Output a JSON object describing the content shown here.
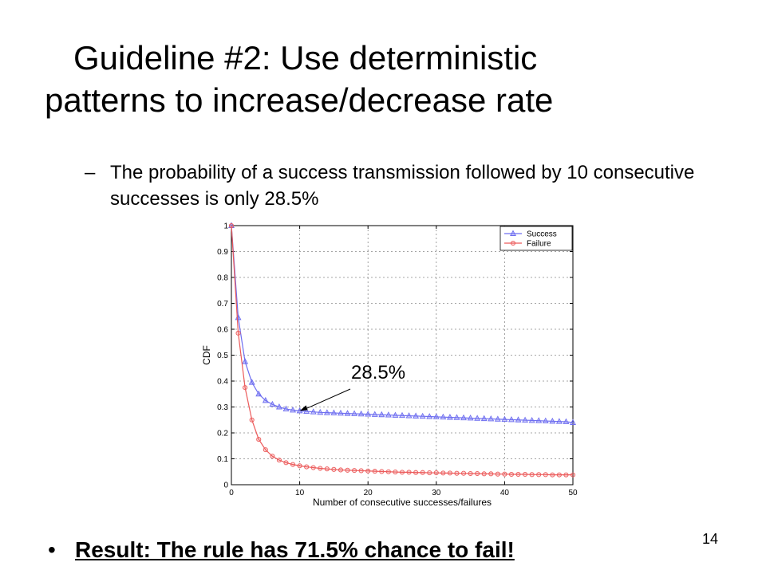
{
  "slide": {
    "title_line1": "Guideline #2: Use deterministic",
    "title_line2": "patterns to increase/decrease rate",
    "bullet_dash": "–",
    "subtext": "The probability of a success transmission followed by 10 consecutive successes is only 28.5%",
    "result_bullet": "•",
    "result": "Result: The rule has 71.5% chance to fail!",
    "page_number": "14"
  },
  "colors": {
    "success": "#6e6ef0",
    "failure": "#ec5a5a"
  },
  "chart_data": {
    "type": "line",
    "title": "",
    "xlabel": "Number of consecutive successes/failures",
    "ylabel": "CDF",
    "xlim": [
      0,
      50
    ],
    "ylim": [
      0,
      1
    ],
    "xticks": [
      "0",
      "10",
      "20",
      "30",
      "40",
      "50"
    ],
    "yticks": [
      "0",
      "0.1",
      "0.2",
      "0.3",
      "0.4",
      "0.5",
      "0.6",
      "0.7",
      "0.8",
      "0.9",
      "1"
    ],
    "legend_position": "top-right",
    "grid": true,
    "x": [
      0,
      1,
      2,
      3,
      4,
      5,
      6,
      7,
      8,
      9,
      10,
      11,
      12,
      13,
      14,
      15,
      16,
      17,
      18,
      19,
      20,
      21,
      22,
      23,
      24,
      25,
      26,
      27,
      28,
      29,
      30,
      31,
      32,
      33,
      34,
      35,
      36,
      37,
      38,
      39,
      40,
      41,
      42,
      43,
      44,
      45,
      46,
      47,
      48,
      49,
      50
    ],
    "series": [
      {
        "name": "Success",
        "values": [
          1.0,
          0.645,
          0.475,
          0.395,
          0.35,
          0.325,
          0.31,
          0.3,
          0.292,
          0.288,
          0.285,
          0.283,
          0.281,
          0.279,
          0.278,
          0.277,
          0.276,
          0.275,
          0.274,
          0.273,
          0.272,
          0.271,
          0.27,
          0.269,
          0.268,
          0.267,
          0.266,
          0.265,
          0.264,
          0.263,
          0.262,
          0.261,
          0.26,
          0.259,
          0.258,
          0.257,
          0.256,
          0.255,
          0.254,
          0.253,
          0.252,
          0.251,
          0.25,
          0.249,
          0.248,
          0.247,
          0.246,
          0.245,
          0.244,
          0.243,
          0.24
        ]
      },
      {
        "name": "Failure",
        "values": [
          1.0,
          0.585,
          0.375,
          0.25,
          0.175,
          0.135,
          0.11,
          0.095,
          0.085,
          0.078,
          0.073,
          0.069,
          0.066,
          0.063,
          0.061,
          0.059,
          0.057,
          0.056,
          0.055,
          0.054,
          0.053,
          0.052,
          0.051,
          0.05,
          0.049,
          0.048,
          0.048,
          0.047,
          0.047,
          0.046,
          0.046,
          0.045,
          0.045,
          0.044,
          0.044,
          0.043,
          0.043,
          0.042,
          0.042,
          0.041,
          0.041,
          0.04,
          0.04,
          0.04,
          0.039,
          0.039,
          0.039,
          0.038,
          0.038,
          0.038,
          0.038
        ]
      }
    ],
    "annotation": {
      "text": "28.5%",
      "x": 10,
      "y": 0.285
    }
  }
}
